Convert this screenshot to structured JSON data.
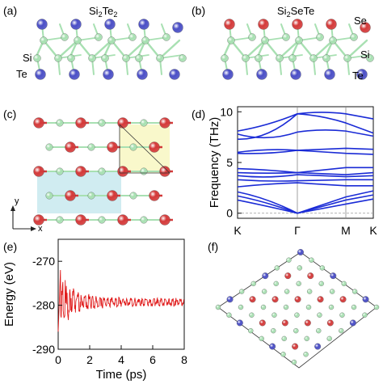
{
  "panels": {
    "a": {
      "label": "(a)",
      "title_main": "Si",
      "title_sub1": "2",
      "title_mid": "Te",
      "title_sub2": "2",
      "atoms": {
        "si": "Si",
        "te": "Te"
      }
    },
    "b": {
      "label": "(b)",
      "title_main": "Si",
      "title_sub1": "2",
      "title_mid": "SeTe",
      "atoms": {
        "se": "Se",
        "si": "Si",
        "te": "Te"
      }
    },
    "c": {
      "label": "(c)",
      "axis_y": "y",
      "axis_x": "x"
    },
    "d": {
      "label": "(d)"
    },
    "e": {
      "label": "(e)"
    },
    "f": {
      "label": "(f)"
    }
  },
  "colors": {
    "si": "#a8e0b2",
    "te": "#4b4fc6",
    "se": "#d43a3a",
    "band": "#1a2bd6",
    "trace": "#e01b1b"
  },
  "chart_data": [
    {
      "id": "phonon-dispersion",
      "type": "line",
      "ylabel": "Frequency (THz)",
      "ylim": [
        -0.5,
        10.5
      ],
      "yticks": [
        0,
        5,
        10
      ],
      "xticks": [
        "K",
        "Γ",
        "M",
        "K"
      ],
      "series": [
        {
          "values": [
            8.1,
            8.6,
            9.8,
            9.8,
            9.3
          ]
        },
        {
          "values": [
            7.3,
            7.2,
            9.8,
            8.9,
            7.9
          ]
        },
        {
          "values": [
            7.8,
            7.0,
            8.0,
            8.1,
            7.6
          ]
        },
        {
          "values": [
            6.0,
            6.4,
            6.2,
            6.4,
            6.3
          ]
        },
        {
          "values": [
            5.9,
            5.8,
            6.2,
            5.9,
            5.8
          ]
        },
        {
          "values": [
            4.4,
            4.3,
            4.0,
            4.5,
            4.5
          ]
        },
        {
          "values": [
            4.0,
            3.9,
            4.0,
            3.8,
            4.0
          ]
        },
        {
          "values": [
            3.7,
            3.4,
            3.8,
            3.6,
            3.7
          ]
        },
        {
          "values": [
            3.3,
            3.1,
            3.2,
            3.3,
            3.3
          ]
        },
        {
          "values": [
            2.6,
            2.9,
            3.0,
            2.7,
            2.7
          ]
        },
        {
          "values": [
            2.1,
            1.5,
            0.0,
            1.6,
            2.2
          ]
        },
        {
          "values": [
            1.7,
            1.1,
            0.0,
            1.3,
            1.8
          ]
        },
        {
          "values": [
            1.3,
            0.7,
            0.0,
            0.9,
            1.4
          ]
        }
      ]
    },
    {
      "id": "aimd-energy",
      "type": "line",
      "xlabel": "Time (ps)",
      "ylabel": "Energy (eV)",
      "xlim": [
        0,
        8
      ],
      "ylim": [
        -290,
        -265
      ],
      "xticks": [
        0,
        2,
        4,
        6,
        8
      ],
      "yticks": [
        -270,
        -280,
        -290
      ],
      "series": [
        {
          "initial_value": -286,
          "peak_value": -271.5,
          "settled_value": -279.3
        }
      ]
    }
  ]
}
